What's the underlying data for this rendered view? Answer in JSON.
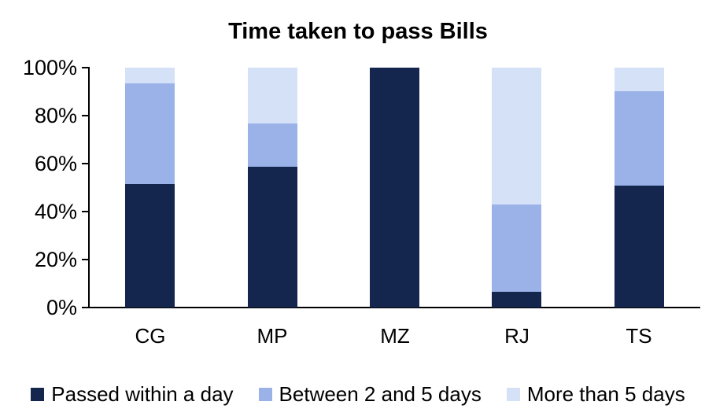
{
  "chart_data": {
    "type": "bar",
    "stacked": true,
    "title": "Time taken to pass Bills",
    "categories": [
      "CG",
      "MP",
      "MZ",
      "RJ",
      "TS"
    ],
    "series": [
      {
        "name": "Passed within a day",
        "color": "#14254E",
        "values": [
          51.5,
          58.7,
          100,
          6.6,
          50.8
        ]
      },
      {
        "name": "Between 2 and 5 days",
        "color": "#9AB2E8",
        "values": [
          42.0,
          18.0,
          0,
          36.4,
          39.3
        ]
      },
      {
        "name": "More than 5 days",
        "color": "#D5E1F7",
        "values": [
          6.5,
          23.3,
          0,
          57.0,
          9.9
        ]
      }
    ],
    "xlabel": "",
    "ylabel": "",
    "ylim": [
      0,
      100
    ],
    "yticks": [
      "0%",
      "20%",
      "40%",
      "60%",
      "80%",
      "100%"
    ],
    "grid": false,
    "legend_position": "bottom",
    "axis_color": "#000000",
    "text_color": "#000000",
    "background_color": "#ffffff"
  }
}
